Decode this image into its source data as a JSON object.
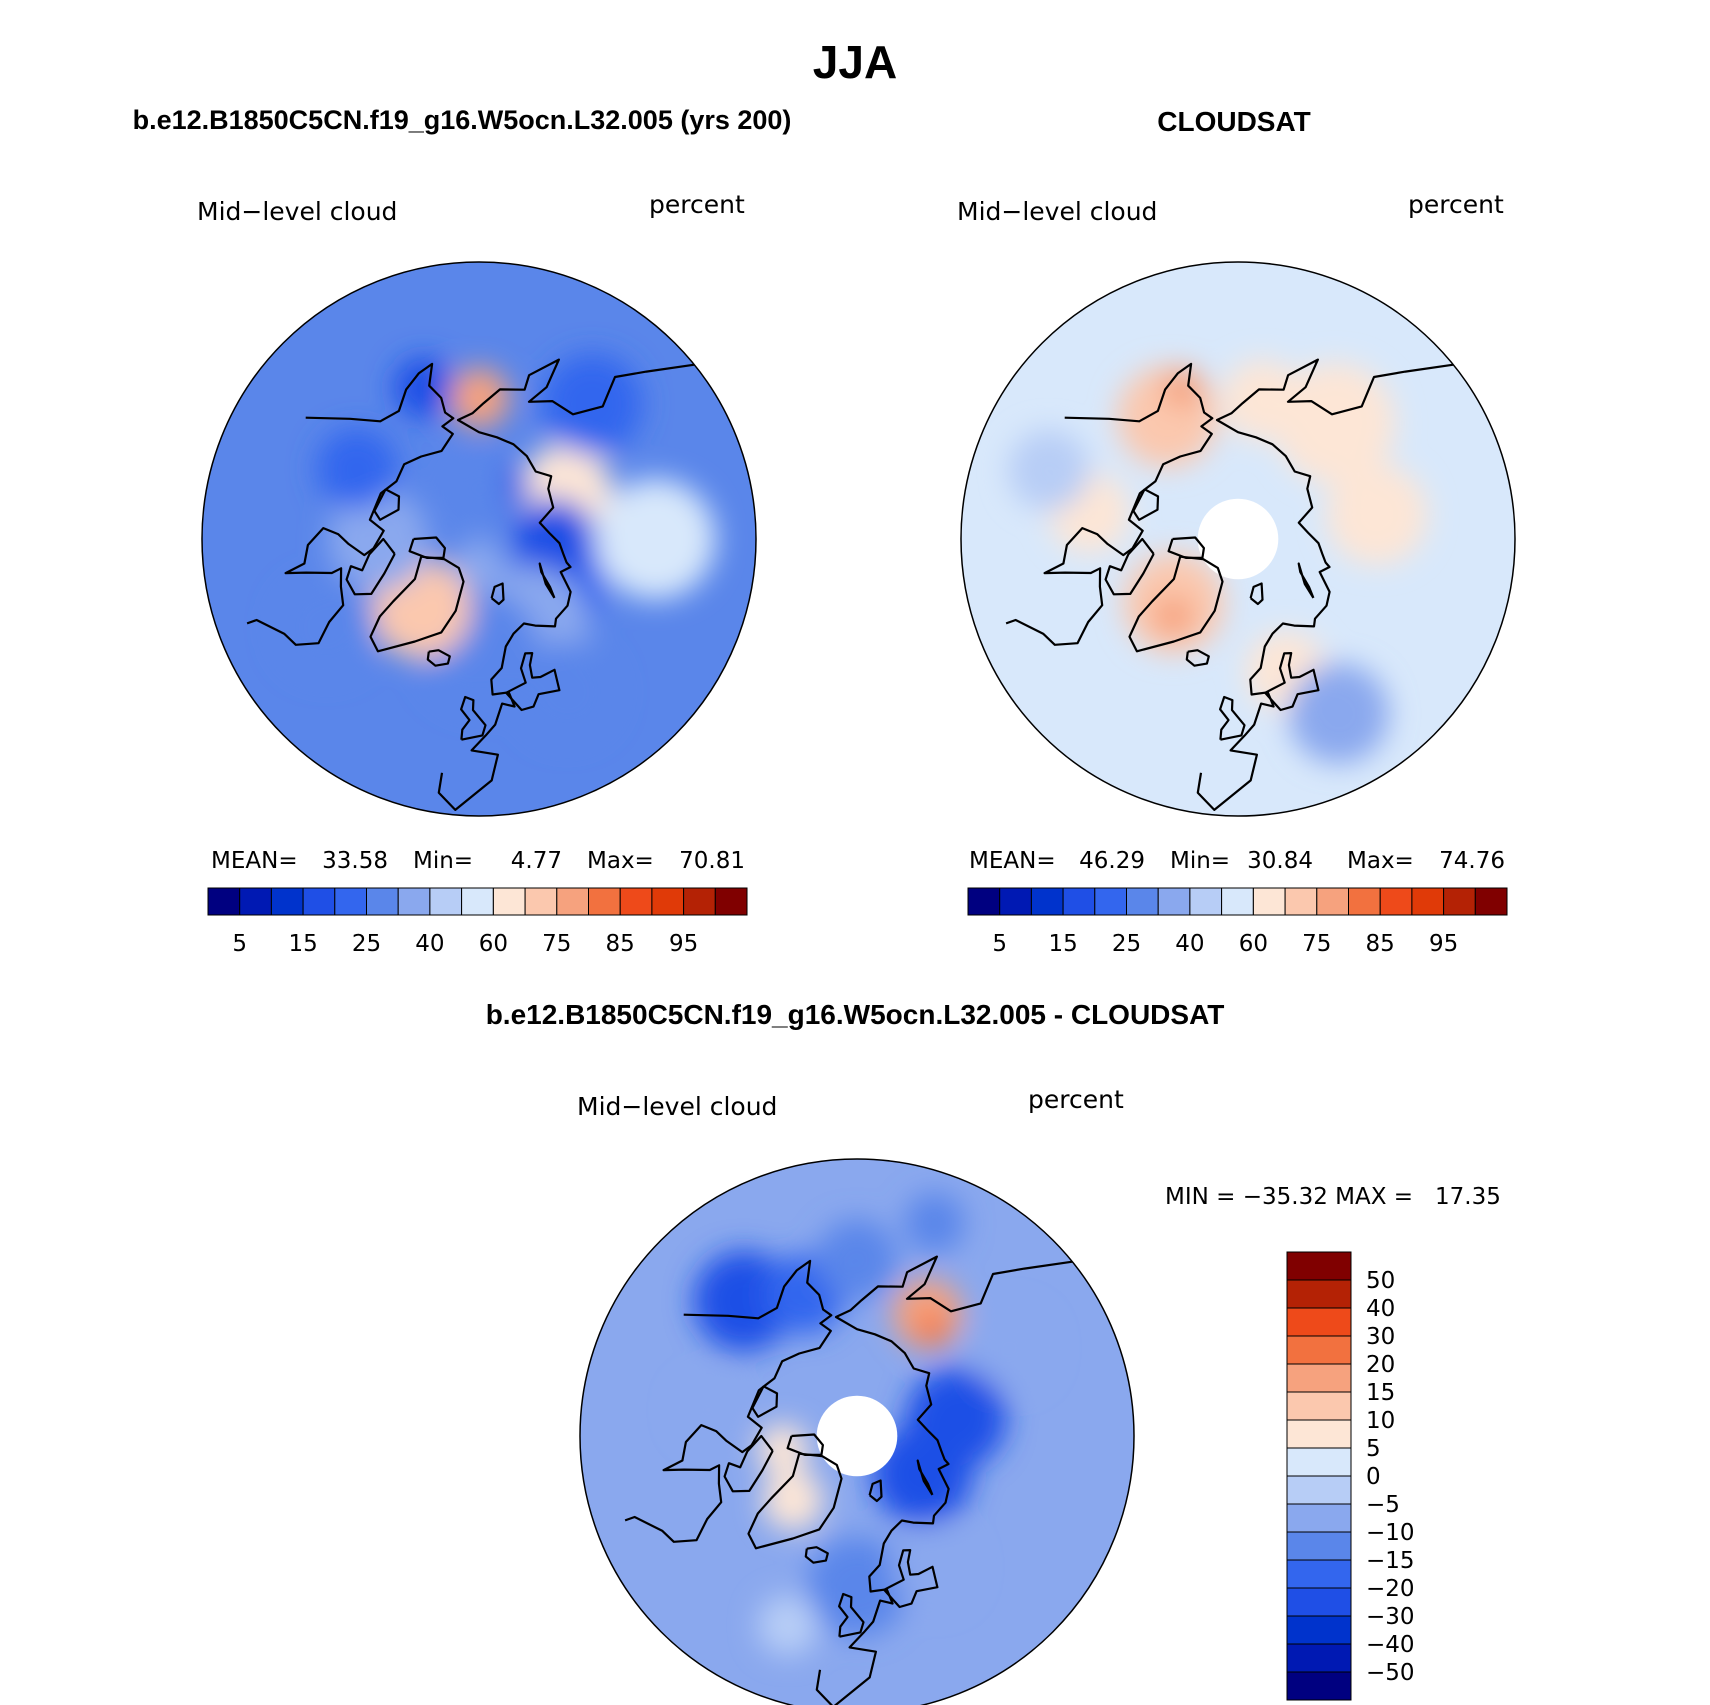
{
  "figure": {
    "season_title": "JJA",
    "model_title": "b.e12.B1850C5CN.f19_g16.W5ocn.L32.005 (yrs 200)",
    "obs_title": "CLOUDSAT",
    "diff_title": "b.e12.B1850C5CN.f19_g16.W5ocn.L32.005 - CLOUDSAT"
  },
  "colors": {
    "abs_scale": [
      "#000080",
      "#0019b3",
      "#0033cc",
      "#1f4fe6",
      "#3366ee",
      "#5a86ea",
      "#8aa8ee",
      "#b7cdf6",
      "#d8e8fb",
      "#fde6d6",
      "#fbc8ae",
      "#f6a27e",
      "#f2713f",
      "#ee4a1a",
      "#e03a08",
      "#b42205",
      "#800000"
    ],
    "diff_scale": [
      "#000080",
      "#0019b3",
      "#0033cc",
      "#1f4fe6",
      "#3366ee",
      "#5a86ea",
      "#8aa8ee",
      "#b7cdf6",
      "#d8e8fb",
      "#fde6d6",
      "#fbc8ae",
      "#f6a27e",
      "#f2713f",
      "#ee4a1a",
      "#b42205",
      "#800000"
    ]
  },
  "chart_data": [
    {
      "type": "heatmap",
      "panel": "model",
      "projection": "north-polar-stereographic",
      "variable_label": "Mid−level cloud",
      "units_label": "percent",
      "stats": {
        "mean_label": "MEAN=",
        "mean": "33.58",
        "min_label": "Min=",
        "min": "4.77",
        "max_label": "Max=",
        "max": "70.81"
      },
      "colorbar": {
        "orientation": "horizontal",
        "tick_labels": [
          "5",
          "15",
          "25",
          "40",
          "60",
          "75",
          "85",
          "95"
        ]
      },
      "fill_regions": [
        {
          "lon": 180,
          "lat": 62,
          "r": 6,
          "level": 11
        },
        {
          "lon": 120,
          "lat": 70,
          "r": 9,
          "level": 9
        },
        {
          "lon": 150,
          "lat": 78,
          "r": 4,
          "level": 3
        },
        {
          "lon": 60,
          "lat": 72,
          "r": 10,
          "level": 4
        },
        {
          "lon": 90,
          "lat": 75,
          "r": 8,
          "level": 3
        },
        {
          "lon": 30,
          "lat": 70,
          "r": 12,
          "level": 6
        },
        {
          "lon": 0,
          "lat": 68,
          "r": 12,
          "level": 5
        },
        {
          "lon": -40,
          "lat": 72,
          "r": 10,
          "level": 10
        },
        {
          "lon": -90,
          "lat": 70,
          "r": 10,
          "level": 6
        },
        {
          "lon": -120,
          "lat": 62,
          "r": 8,
          "level": 4
        },
        {
          "lon": -160,
          "lat": 58,
          "r": 6,
          "level": 3
        },
        {
          "lon": 140,
          "lat": 55,
          "r": 10,
          "level": 4
        },
        {
          "lon": 30,
          "lat": 55,
          "r": 10,
          "level": 5
        },
        {
          "lon": 90,
          "lat": 55,
          "r": 12,
          "level": 8
        },
        {
          "lon": -60,
          "lat": 55,
          "r": 10,
          "level": 5
        },
        {
          "lon": 180,
          "lat": 80,
          "r": 6,
          "level": 5
        },
        {
          "lon": 0,
          "lat": 85,
          "r": 5,
          "level": 6
        }
      ]
    },
    {
      "type": "heatmap",
      "panel": "observation",
      "projection": "north-polar-stereographic",
      "variable_label": "Mid−level cloud",
      "units_label": "percent",
      "stats": {
        "mean_label": "MEAN=",
        "mean": "46.29",
        "min_label": "Min=",
        "min": "30.84",
        "max_label": "Max=",
        "max": "74.76"
      },
      "colorbar": {
        "orientation": "horizontal",
        "tick_labels": [
          "5",
          "15",
          "25",
          "40",
          "60",
          "75",
          "85",
          "95"
        ]
      },
      "missing_region": {
        "lat_min": 82
      },
      "fill_regions": [
        {
          "lon": -150,
          "lat": 62,
          "r": 10,
          "level": 10
        },
        {
          "lon": -160,
          "lat": 58,
          "r": 4,
          "level": 11
        },
        {
          "lon": -45,
          "lat": 72,
          "r": 10,
          "level": 10
        },
        {
          "lon": -40,
          "lat": 70,
          "r": 4,
          "level": 11
        },
        {
          "lon": 100,
          "lat": 62,
          "r": 10,
          "level": 9
        },
        {
          "lon": 140,
          "lat": 60,
          "r": 12,
          "level": 9
        },
        {
          "lon": 170,
          "lat": 62,
          "r": 8,
          "level": 9
        },
        {
          "lon": -100,
          "lat": 60,
          "r": 8,
          "level": 9
        },
        {
          "lon": 20,
          "lat": 62,
          "r": 8,
          "level": 9
        },
        {
          "lon": 30,
          "lat": 50,
          "r": 10,
          "level": 6
        },
        {
          "lon": -110,
          "lat": 50,
          "r": 8,
          "level": 7
        }
      ]
    },
    {
      "type": "heatmap",
      "panel": "difference",
      "projection": "north-polar-stereographic",
      "variable_label": "Mid−level cloud",
      "units_label": "percent",
      "stats": {
        "label": "MIN = −35.32 MAX =   17.35",
        "min": "−35.32",
        "max": "17.35"
      },
      "missing_region": {
        "lat_min": 82
      },
      "colorbar": {
        "orientation": "vertical",
        "tick_labels": [
          "50",
          "40",
          "30",
          "20",
          "15",
          "10",
          "5",
          "0",
          "−5",
          "−10",
          "−15",
          "−20",
          "−30",
          "−40",
          "−50"
        ]
      },
      "fill_regions": [
        {
          "lon": 150,
          "lat": 62,
          "r": 7,
          "level": 11
        },
        {
          "lon": 145,
          "lat": 64,
          "r": 3,
          "level": 12
        },
        {
          "lon": -45,
          "lat": 72,
          "r": 6,
          "level": 9
        },
        {
          "lon": -80,
          "lat": 75,
          "r": 5,
          "level": 9
        },
        {
          "lon": 100,
          "lat": 70,
          "r": 10,
          "level": 3
        },
        {
          "lon": 60,
          "lat": 75,
          "r": 10,
          "level": 3
        },
        {
          "lon": -140,
          "lat": 55,
          "r": 10,
          "level": 3
        },
        {
          "lon": -160,
          "lat": 60,
          "r": 8,
          "level": 4
        },
        {
          "lon": 0,
          "lat": 60,
          "r": 10,
          "level": 5
        },
        {
          "lon": 30,
          "lat": 60,
          "r": 8,
          "level": 6
        },
        {
          "lon": 180,
          "lat": 55,
          "r": 8,
          "level": 5
        },
        {
          "lon": -100,
          "lat": 60,
          "r": 6,
          "level": 6
        },
        {
          "lon": 120,
          "lat": 55,
          "r": 8,
          "level": 6
        },
        {
          "lon": 160,
          "lat": 45,
          "r": 6,
          "level": 5
        },
        {
          "lon": -20,
          "lat": 50,
          "r": 6,
          "level": 7
        }
      ]
    }
  ]
}
